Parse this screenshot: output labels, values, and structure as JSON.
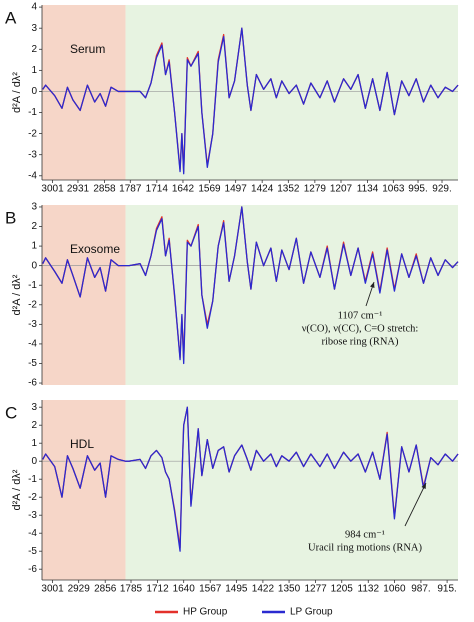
{
  "chart_data": [
    {
      "type": "line",
      "panel": "A",
      "title": "Serum",
      "ylabel": "d²A / dλ²",
      "xlim": [
        3030,
        885
      ],
      "x_break": [
        2800,
        1800
      ],
      "ylim": [
        -4.2,
        4.1
      ],
      "yticks": [
        -4,
        -3,
        -2,
        -1,
        0,
        1,
        2,
        3,
        4
      ],
      "xticks": [
        3001,
        2931,
        2858,
        1787,
        1714,
        1642,
        1569,
        1497,
        1424,
        1352,
        1279,
        1207,
        1134,
        1063,
        {
          "value": 995,
          "label": "995."
        },
        {
          "value": 929,
          "label": "929."
        }
      ],
      "x": [
        3028,
        3020,
        2995,
        2975,
        2960,
        2945,
        2925,
        2905,
        2885,
        2870,
        2855,
        2840,
        2820,
        2800,
        1790,
        1760,
        1745,
        1730,
        1715,
        1700,
        1690,
        1680,
        1665,
        1650,
        1645,
        1640,
        1630,
        1620,
        1600,
        1590,
        1575,
        1560,
        1545,
        1530,
        1515,
        1500,
        1480,
        1465,
        1455,
        1440,
        1420,
        1400,
        1385,
        1370,
        1350,
        1330,
        1310,
        1290,
        1265,
        1245,
        1225,
        1200,
        1180,
        1160,
        1140,
        1120,
        1100,
        1080,
        1060,
        1040,
        1020,
        1000,
        980,
        960,
        940,
        920,
        900,
        885
      ],
      "series": [
        {
          "name": "HP Group",
          "color": "#e3302a",
          "values": [
            0.1,
            0.3,
            -0.2,
            -0.8,
            0.2,
            -0.4,
            -0.9,
            0.3,
            -0.5,
            -0.1,
            -0.7,
            0.2,
            0.0,
            0.0,
            0.0,
            0.0,
            -0.3,
            0.4,
            1.7,
            2.3,
            0.8,
            1.5,
            -1.0,
            -3.7,
            -2.0,
            -3.8,
            1.6,
            1.2,
            1.9,
            -1.0,
            -3.5,
            -2.0,
            1.5,
            2.7,
            -0.3,
            0.5,
            3.0,
            0.3,
            -0.9,
            0.8,
            0.1,
            0.6,
            -0.3,
            0.5,
            -0.1,
            0.3,
            -0.6,
            0.4,
            -0.3,
            0.5,
            -0.5,
            0.6,
            0.1,
            0.8,
            -0.8,
            0.6,
            -0.9,
            0.9,
            -1.1,
            0.5,
            -0.2,
            0.6,
            -0.5,
            0.3,
            -0.3,
            0.2,
            0.0,
            0.3
          ]
        },
        {
          "name": "LP Group",
          "color": "#2a2ad0",
          "values": [
            0.1,
            0.3,
            -0.2,
            -0.8,
            0.2,
            -0.4,
            -0.9,
            0.3,
            -0.5,
            -0.1,
            -0.7,
            0.2,
            0.0,
            0.0,
            0.0,
            0.0,
            -0.3,
            0.4,
            1.6,
            2.2,
            0.8,
            1.4,
            -1.0,
            -3.8,
            -2.0,
            -3.9,
            1.5,
            1.2,
            1.8,
            -1.0,
            -3.6,
            -2.0,
            1.4,
            2.6,
            -0.3,
            0.5,
            3.0,
            0.3,
            -0.9,
            0.8,
            0.1,
            0.6,
            -0.3,
            0.5,
            -0.1,
            0.3,
            -0.6,
            0.4,
            -0.3,
            0.5,
            -0.5,
            0.6,
            0.1,
            0.8,
            -0.8,
            0.6,
            -0.9,
            0.9,
            -1.1,
            0.5,
            -0.2,
            0.6,
            -0.5,
            0.3,
            -0.3,
            0.2,
            0.0,
            0.3
          ]
        }
      ]
    },
    {
      "type": "line",
      "panel": "B",
      "title": "Exosome",
      "ylabel": "d²A / dλ²",
      "xlim": [
        3030,
        885
      ],
      "x_break": [
        2800,
        1800
      ],
      "ylim": [
        -6.1,
        3.1
      ],
      "yticks": [
        -6,
        -5,
        -4,
        -3,
        -2,
        -1,
        0,
        1,
        2,
        3
      ],
      "annotation": [
        "1107 cm⁻¹",
        "ν(CO), ν(CC), C=O stretch:",
        "ribose ring (RNA)"
      ],
      "x": [
        3028,
        3020,
        2995,
        2975,
        2960,
        2945,
        2925,
        2905,
        2885,
        2870,
        2855,
        2840,
        2820,
        2800,
        1790,
        1760,
        1745,
        1730,
        1715,
        1700,
        1690,
        1680,
        1665,
        1650,
        1645,
        1640,
        1630,
        1620,
        1600,
        1590,
        1575,
        1560,
        1545,
        1530,
        1515,
        1500,
        1480,
        1465,
        1455,
        1440,
        1420,
        1400,
        1385,
        1370,
        1350,
        1330,
        1310,
        1290,
        1265,
        1245,
        1225,
        1200,
        1180,
        1160,
        1140,
        1120,
        1100,
        1080,
        1060,
        1040,
        1020,
        1000,
        980,
        960,
        940,
        920,
        900,
        885
      ],
      "series": [
        {
          "color": "#e3302a",
          "values": [
            0.1,
            0.4,
            -0.3,
            -0.9,
            0.3,
            -0.5,
            -1.6,
            0.4,
            -0.6,
            -0.1,
            -1.3,
            0.3,
            0.0,
            0.0,
            0.0,
            0.1,
            -0.5,
            0.5,
            1.9,
            2.5,
            0.5,
            1.4,
            -1.6,
            -4.7,
            -2.6,
            -4.8,
            1.3,
            1.0,
            2.1,
            -1.5,
            -3.0,
            -1.8,
            1.0,
            2.3,
            -0.8,
            0.5,
            3.0,
            0.2,
            -1.2,
            1.2,
            0.0,
            0.9,
            -0.8,
            0.8,
            -0.2,
            1.4,
            -0.9,
            0.7,
            -0.6,
            1.0,
            -1.2,
            1.2,
            -0.5,
            0.9,
            -0.8,
            0.7,
            -1.3,
            0.9,
            -1.2,
            0.6,
            -0.6,
            0.6,
            -0.9,
            0.4,
            -0.5,
            0.3,
            -0.1,
            0.2
          ]
        },
        {
          "color": "#2a2ad0",
          "values": [
            0.1,
            0.4,
            -0.3,
            -0.9,
            0.3,
            -0.5,
            -1.6,
            0.4,
            -0.6,
            -0.1,
            -1.3,
            0.3,
            0.0,
            0.0,
            0.0,
            0.1,
            -0.5,
            0.5,
            1.8,
            2.4,
            0.5,
            1.3,
            -1.5,
            -4.8,
            -2.5,
            -5.0,
            1.2,
            1.0,
            2.0,
            -1.5,
            -3.2,
            -1.8,
            1.0,
            2.2,
            -0.8,
            0.5,
            3.0,
            0.2,
            -1.2,
            1.2,
            0.0,
            0.9,
            -0.8,
            0.8,
            -0.2,
            1.4,
            -0.9,
            0.7,
            -0.6,
            0.9,
            -1.2,
            1.1,
            -0.5,
            0.9,
            -0.9,
            0.6,
            -1.4,
            0.8,
            -1.3,
            0.6,
            -0.6,
            0.5,
            -0.9,
            0.4,
            -0.5,
            0.3,
            -0.1,
            0.2
          ]
        }
      ]
    },
    {
      "type": "line",
      "panel": "C",
      "title": "HDL",
      "ylabel": "d²A / dλ²",
      "xlim": [
        3030,
        885
      ],
      "x_break": [
        2800,
        1800
      ],
      "ylim": [
        -6.6,
        3.4
      ],
      "yticks": [
        -6,
        -5,
        -4,
        -3,
        -2,
        -1,
        0,
        1,
        2,
        3
      ],
      "xticks": [
        3001,
        2929,
        2856,
        1785,
        1712,
        1640,
        1567,
        1495,
        1422,
        1350,
        1277,
        1205,
        1132,
        1060,
        {
          "value": 987,
          "label": "987."
        },
        {
          "value": 915,
          "label": "915."
        }
      ],
      "annotation": [
        "984 cm⁻¹",
        "Uracil ring motions (RNA)"
      ],
      "x": [
        3028,
        3020,
        2995,
        2975,
        2960,
        2945,
        2925,
        2905,
        2885,
        2870,
        2855,
        2840,
        2820,
        2800,
        1790,
        1760,
        1745,
        1730,
        1715,
        1700,
        1690,
        1680,
        1665,
        1650,
        1645,
        1640,
        1630,
        1620,
        1600,
        1590,
        1575,
        1560,
        1545,
        1530,
        1515,
        1500,
        1480,
        1465,
        1455,
        1440,
        1420,
        1400,
        1385,
        1370,
        1350,
        1330,
        1310,
        1290,
        1265,
        1245,
        1225,
        1200,
        1180,
        1160,
        1140,
        1120,
        1100,
        1080,
        1060,
        1040,
        1020,
        1000,
        980,
        960,
        940,
        920,
        900,
        885
      ],
      "series": [
        {
          "color": "#e3302a",
          "values": [
            0.1,
            0.4,
            -0.3,
            -2.0,
            0.3,
            -0.4,
            -1.5,
            0.3,
            -0.5,
            -0.1,
            -2.0,
            0.3,
            0.1,
            0.0,
            0.0,
            0.1,
            -0.4,
            0.3,
            0.6,
            0.2,
            -0.6,
            -1.0,
            -2.7,
            -4.8,
            -1.0,
            2.0,
            3.0,
            -2.4,
            1.8,
            -0.8,
            1.2,
            -0.4,
            0.6,
            0.8,
            -0.6,
            0.3,
            0.9,
            0.1,
            -0.5,
            0.6,
            0.0,
            0.4,
            -0.3,
            0.3,
            0.0,
            0.5,
            -0.3,
            0.4,
            -0.3,
            0.4,
            -0.4,
            0.5,
            0.0,
            0.4,
            -0.6,
            0.5,
            -1.0,
            1.6,
            -3.1,
            0.8,
            -0.6,
            0.9,
            -1.4,
            0.2,
            -0.2,
            0.4,
            0.0,
            0.4
          ]
        },
        {
          "color": "#2a2ad0",
          "values": [
            0.1,
            0.4,
            -0.3,
            -2.0,
            0.3,
            -0.4,
            -1.5,
            0.3,
            -0.5,
            -0.1,
            -2.0,
            0.3,
            0.1,
            0.0,
            0.0,
            0.1,
            -0.4,
            0.3,
            0.6,
            0.2,
            -0.6,
            -1.0,
            -2.8,
            -5.0,
            -1.0,
            2.0,
            3.0,
            -2.5,
            1.8,
            -0.8,
            1.2,
            -0.4,
            0.6,
            0.8,
            -0.6,
            0.3,
            0.9,
            0.1,
            -0.5,
            0.6,
            0.0,
            0.4,
            -0.3,
            0.3,
            0.0,
            0.5,
            -0.3,
            0.4,
            -0.3,
            0.4,
            -0.4,
            0.5,
            0.0,
            0.4,
            -0.6,
            0.5,
            -1.0,
            1.5,
            -3.2,
            0.8,
            -0.6,
            0.9,
            -1.5,
            0.2,
            -0.2,
            0.4,
            0.0,
            0.4
          ]
        }
      ]
    }
  ]
}
